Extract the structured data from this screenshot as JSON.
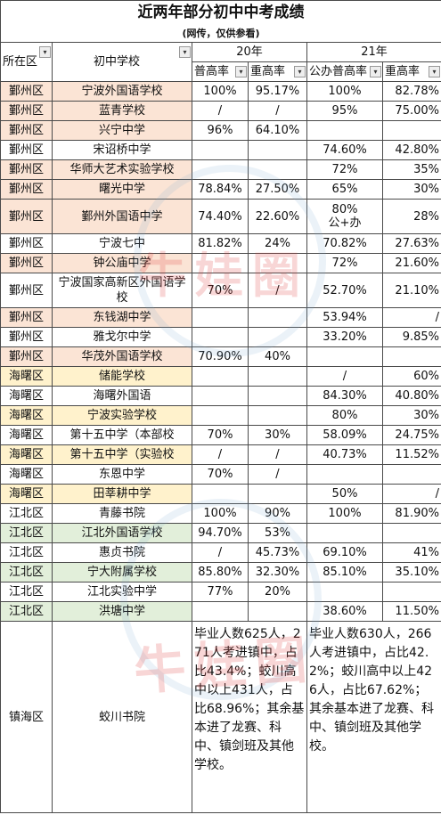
{
  "title": "近两年部分初中中考成绩",
  "subtitle": "(网传，仅供参看)",
  "headers": {
    "district": "所在区",
    "school": "初中学校",
    "y20": "20年",
    "y21": "21年",
    "pu20": "普高率",
    "zh20": "重高率",
    "pu21": "公办普高率",
    "zh21": "重高率"
  },
  "rows": [
    {
      "d": "鄞州区",
      "s": "宁波外国语学校",
      "a": "100%",
      "b": "95.17%",
      "c": "100%",
      "e": "82.78%",
      "hl": "o"
    },
    {
      "d": "鄞州区",
      "s": "蓝青学校",
      "a": "/",
      "b": "/",
      "c": "95%",
      "e": "75.00%",
      "hl": "o"
    },
    {
      "d": "鄞州区",
      "s": "兴宁中学",
      "a": "96%",
      "b": "64.10%",
      "c": "",
      "e": "",
      "hl": "o"
    },
    {
      "d": "鄞州区",
      "s": "宋诏桥中学",
      "a": "",
      "b": "",
      "c": "74.60%",
      "e": "42.80%",
      "hl": ""
    },
    {
      "d": "鄞州区",
      "s": "华师大艺术实验学校",
      "a": "",
      "b": "",
      "c": "72%",
      "e": "35%",
      "hl": "o"
    },
    {
      "d": "鄞州区",
      "s": "曙光中学",
      "a": "78.84%",
      "b": "27.50%",
      "c": "65%",
      "e": "30%",
      "hl": "o"
    },
    {
      "d": "鄞州区",
      "s": "鄞州外国语中学",
      "a": "74.40%",
      "b": "22.60%",
      "c": "80%\n公+办",
      "e": "28%",
      "hl": "o"
    },
    {
      "d": "鄞州区",
      "s": "宁波七中",
      "a": "81.82%",
      "b": "24%",
      "c": "70.82%",
      "e": "27.63%",
      "hl": ""
    },
    {
      "d": "鄞州区",
      "s": "钟公庙中学",
      "a": "",
      "b": "",
      "c": "72%",
      "e": "21.60%",
      "hl": "o"
    },
    {
      "d": "鄞州区",
      "s": "宁波国家高新区外国语学校",
      "a": "70%",
      "b": "/",
      "c": "52.70%",
      "e": "21.10%",
      "hl": ""
    },
    {
      "d": "鄞州区",
      "s": "东钱湖中学",
      "a": "",
      "b": "",
      "c": "53.94%",
      "e": "/",
      "hl": "o"
    },
    {
      "d": "鄞州区",
      "s": "雅戈尔中学",
      "a": "",
      "b": "",
      "c": "33.20%",
      "e": "9.85%",
      "hl": ""
    },
    {
      "d": "鄞州区",
      "s": "华茂外国语学校",
      "a": "70.90%",
      "b": "40%",
      "c": "",
      "e": "",
      "hl": "o"
    },
    {
      "d": "海曙区",
      "s": "储能学校",
      "a": "",
      "b": "",
      "c": "/",
      "e": "60%",
      "hl": "y"
    },
    {
      "d": "海曙区",
      "s": "海曙外国语",
      "a": "",
      "b": "",
      "c": "84.30%",
      "e": "40.80%",
      "hl": ""
    },
    {
      "d": "海曙区",
      "s": "宁波实验学校",
      "a": "",
      "b": "",
      "c": "80%",
      "e": "30%",
      "hl": "y"
    },
    {
      "d": "海曙区",
      "s": "第十五中学（本部校",
      "a": "70%",
      "b": "30%",
      "c": "58.09%",
      "e": "24.75%",
      "hl": ""
    },
    {
      "d": "海曙区",
      "s": "第十五中学（实验校",
      "a": "/",
      "b": "/",
      "c": "40.73%",
      "e": "11.52%",
      "hl": "y"
    },
    {
      "d": "海曙区",
      "s": "东恩中学",
      "a": "70%",
      "b": "/",
      "c": "",
      "e": "",
      "hl": ""
    },
    {
      "d": "海曙区",
      "s": "田莘耕中学",
      "a": "",
      "b": "",
      "c": "50%",
      "e": "/",
      "hl": "y"
    },
    {
      "d": "江北区",
      "s": "青藤书院",
      "a": "100%",
      "b": "90%",
      "c": "100%",
      "e": "81.90%",
      "hl": ""
    },
    {
      "d": "江北区",
      "s": "江北外国语学校",
      "a": "94.70%",
      "b": "53%",
      "c": "",
      "e": "",
      "hl": "g"
    },
    {
      "d": "江北区",
      "s": "惠贞书院",
      "a": "/",
      "b": "45.73%",
      "c": "69.10%",
      "e": "41%",
      "hl": ""
    },
    {
      "d": "江北区",
      "s": "宁大附属学校",
      "a": "85.80%",
      "b": "32.30%",
      "c": "85.10%",
      "e": "35.10%",
      "hl": "g"
    },
    {
      "d": "江北区",
      "s": "江北实验中学",
      "a": "77%",
      "b": "20%",
      "c": "",
      "e": "",
      "hl": ""
    },
    {
      "d": "江北区",
      "s": "洪塘中学",
      "a": "",
      "b": "",
      "c": "38.60%",
      "e": "11.50%",
      "hl": "g"
    }
  ],
  "last": {
    "d": "镇海区",
    "s": "蛟川书院",
    "note20": "毕业人数625人，271人考进镇中，占比43.4%；蛟川高中以上431人，占比68.96%；其余基本进了龙赛、科中、镇剑班及其他学校。",
    "note21": "毕业人数630人，266人考进镇中，占比42.2%；蛟川高中以上426人，占比67.62%；其余基本进了龙赛、科中、镇剑班及其他学校。"
  },
  "watermark": {
    "text1": "牛娃圈",
    "text2": "牛娃圈"
  },
  "colors": {
    "orange_highlight": "#fbe4d5",
    "yellow_highlight": "#fff2cc",
    "green_highlight": "#e2efda",
    "watermark_red": "#e14646"
  }
}
